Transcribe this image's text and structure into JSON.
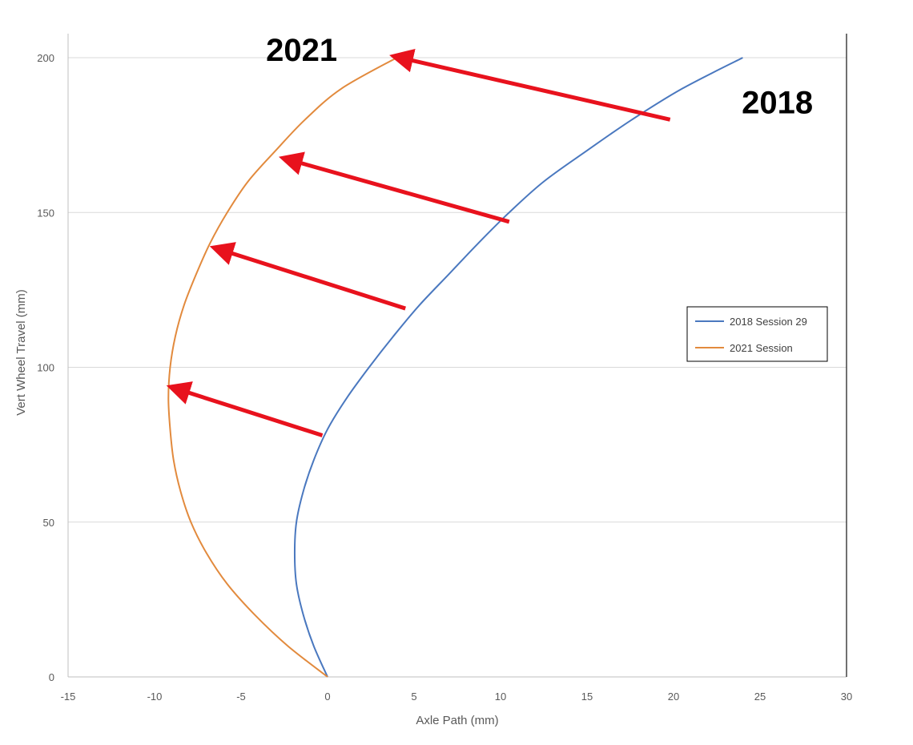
{
  "chart_data": {
    "type": "line",
    "title": "",
    "xlabel": "Axle Path (mm)",
    "ylabel": "Vert Wheel Travel (mm)",
    "xlim": [
      -15,
      30
    ],
    "ylim": [
      0,
      200
    ],
    "xticks": [
      -15,
      -10,
      -5,
      0,
      5,
      10,
      15,
      20,
      25,
      30
    ],
    "yticks": [
      0,
      50,
      100,
      150,
      200
    ],
    "grid": "horizontal",
    "legend_position": "right",
    "series": [
      {
        "name": "2018 Session 29",
        "color": "#4a78bf",
        "points": [
          [
            0,
            0
          ],
          [
            -0.8,
            10
          ],
          [
            -1.4,
            20
          ],
          [
            -1.8,
            30
          ],
          [
            -1.9,
            40
          ],
          [
            -1.8,
            50
          ],
          [
            -1.4,
            60
          ],
          [
            -0.8,
            70
          ],
          [
            0,
            80
          ],
          [
            1.1,
            90
          ],
          [
            2.4,
            100
          ],
          [
            3.8,
            110
          ],
          [
            5.3,
            120
          ],
          [
            7.0,
            130
          ],
          [
            8.7,
            140
          ],
          [
            10.5,
            150
          ],
          [
            12.5,
            160
          ],
          [
            15.0,
            170
          ],
          [
            17.6,
            180
          ],
          [
            20.5,
            190
          ],
          [
            24,
            200
          ]
        ]
      },
      {
        "name": "2021 Session",
        "color": "#e28a3d",
        "points": [
          [
            0,
            0
          ],
          [
            -2.3,
            10
          ],
          [
            -4.2,
            20
          ],
          [
            -5.8,
            30
          ],
          [
            -7.0,
            40
          ],
          [
            -7.9,
            50
          ],
          [
            -8.5,
            60
          ],
          [
            -8.9,
            70
          ],
          [
            -9.1,
            80
          ],
          [
            -9.2,
            90
          ],
          [
            -9.1,
            100
          ],
          [
            -8.8,
            110
          ],
          [
            -8.3,
            120
          ],
          [
            -7.6,
            130
          ],
          [
            -6.8,
            140
          ],
          [
            -5.8,
            150
          ],
          [
            -4.6,
            160
          ],
          [
            -3.0,
            170
          ],
          [
            -1.3,
            180
          ],
          [
            0.8,
            190
          ],
          [
            4,
            200
          ]
        ]
      }
    ],
    "annotations": {
      "labels": [
        {
          "text": "2021",
          "x": -1.5,
          "y": 200
        },
        {
          "text": "2018",
          "x": 26,
          "y": 183
        }
      ],
      "arrows": [
        {
          "from": [
            19.8,
            180
          ],
          "to": [
            4.2,
            200
          ]
        },
        {
          "from": [
            10.5,
            147
          ],
          "to": [
            -2.2,
            167
          ]
        },
        {
          "from": [
            4.5,
            119
          ],
          "to": [
            -6.2,
            138
          ]
        },
        {
          "from": [
            -0.3,
            78
          ],
          "to": [
            -8.7,
            93
          ]
        }
      ],
      "arrow_color": "#e8121d"
    }
  }
}
